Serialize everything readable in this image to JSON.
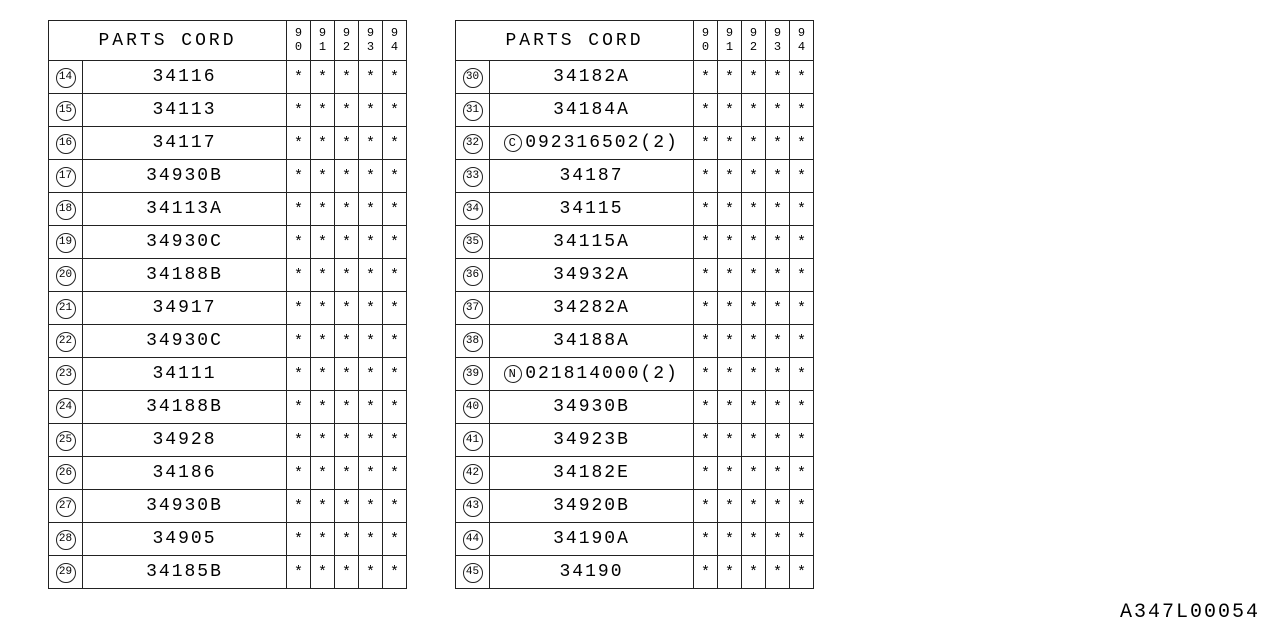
{
  "header_label": "PARTS CORD",
  "year_columns": [
    "90",
    "91",
    "92",
    "93",
    "94"
  ],
  "mark": "*",
  "doc_id": "A347L00054",
  "colors": {
    "border": "#222222",
    "background": "#ffffff",
    "text": "#000000"
  },
  "tables": [
    {
      "rows": [
        {
          "idx": "14",
          "part": "34116",
          "marks": [
            "*",
            "*",
            "*",
            "*",
            "*"
          ]
        },
        {
          "idx": "15",
          "part": "34113",
          "marks": [
            "*",
            "*",
            "*",
            "*",
            "*"
          ]
        },
        {
          "idx": "16",
          "part": "34117",
          "marks": [
            "*",
            "*",
            "*",
            "*",
            "*"
          ]
        },
        {
          "idx": "17",
          "part": "34930B",
          "marks": [
            "*",
            "*",
            "*",
            "*",
            "*"
          ]
        },
        {
          "idx": "18",
          "part": "34113A",
          "marks": [
            "*",
            "*",
            "*",
            "*",
            "*"
          ]
        },
        {
          "idx": "19",
          "part": "34930C",
          "marks": [
            "*",
            "*",
            "*",
            "*",
            "*"
          ]
        },
        {
          "idx": "20",
          "part": "34188B",
          "marks": [
            "*",
            "*",
            "*",
            "*",
            "*"
          ]
        },
        {
          "idx": "21",
          "part": "34917",
          "marks": [
            "*",
            "*",
            "*",
            "*",
            "*"
          ]
        },
        {
          "idx": "22",
          "part": "34930C",
          "marks": [
            "*",
            "*",
            "*",
            "*",
            "*"
          ]
        },
        {
          "idx": "23",
          "part": "34111",
          "marks": [
            "*",
            "*",
            "*",
            "*",
            "*"
          ]
        },
        {
          "idx": "24",
          "part": "34188B",
          "marks": [
            "*",
            "*",
            "*",
            "*",
            "*"
          ]
        },
        {
          "idx": "25",
          "part": "34928",
          "marks": [
            "*",
            "*",
            "*",
            "*",
            "*"
          ]
        },
        {
          "idx": "26",
          "part": "34186",
          "marks": [
            "*",
            "*",
            "*",
            "*",
            "*"
          ]
        },
        {
          "idx": "27",
          "part": "34930B",
          "marks": [
            "*",
            "*",
            "*",
            "*",
            "*"
          ]
        },
        {
          "idx": "28",
          "part": "34905",
          "marks": [
            "*",
            "*",
            "*",
            "*",
            "*"
          ]
        },
        {
          "idx": "29",
          "part": "34185B",
          "marks": [
            "*",
            "*",
            "*",
            "*",
            "*"
          ]
        }
      ]
    },
    {
      "rows": [
        {
          "idx": "30",
          "part": "34182A",
          "marks": [
            "*",
            "*",
            "*",
            "*",
            "*"
          ]
        },
        {
          "idx": "31",
          "part": "34184A",
          "marks": [
            "*",
            "*",
            "*",
            "*",
            "*"
          ]
        },
        {
          "idx": "32",
          "prefix_circle": "C",
          "part": "092316502(2)",
          "marks": [
            "*",
            "*",
            "*",
            "*",
            "*"
          ]
        },
        {
          "idx": "33",
          "part": "34187",
          "marks": [
            "*",
            "*",
            "*",
            "*",
            "*"
          ]
        },
        {
          "idx": "34",
          "part": "34115",
          "marks": [
            "*",
            "*",
            "*",
            "*",
            "*"
          ]
        },
        {
          "idx": "35",
          "part": "34115A",
          "marks": [
            "*",
            "*",
            "*",
            "*",
            "*"
          ]
        },
        {
          "idx": "36",
          "part": "34932A",
          "marks": [
            "*",
            "*",
            "*",
            "*",
            "*"
          ]
        },
        {
          "idx": "37",
          "part": "34282A",
          "marks": [
            "*",
            "*",
            "*",
            "*",
            "*"
          ]
        },
        {
          "idx": "38",
          "part": "34188A",
          "marks": [
            "*",
            "*",
            "*",
            "*",
            "*"
          ]
        },
        {
          "idx": "39",
          "prefix_circle": "N",
          "part": "021814000(2)",
          "marks": [
            "*",
            "*",
            "*",
            "*",
            "*"
          ]
        },
        {
          "idx": "40",
          "part": "34930B",
          "marks": [
            "*",
            "*",
            "*",
            "*",
            "*"
          ]
        },
        {
          "idx": "41",
          "part": "34923B",
          "marks": [
            "*",
            "*",
            "*",
            "*",
            "*"
          ]
        },
        {
          "idx": "42",
          "part": "34182E",
          "marks": [
            "*",
            "*",
            "*",
            "*",
            "*"
          ]
        },
        {
          "idx": "43",
          "part": "34920B",
          "marks": [
            "*",
            "*",
            "*",
            "*",
            "*"
          ]
        },
        {
          "idx": "44",
          "part": "34190A",
          "marks": [
            "*",
            "*",
            "*",
            "*",
            "*"
          ]
        },
        {
          "idx": "45",
          "part": "34190",
          "marks": [
            "*",
            "*",
            "*",
            "*",
            "*"
          ]
        }
      ]
    }
  ]
}
